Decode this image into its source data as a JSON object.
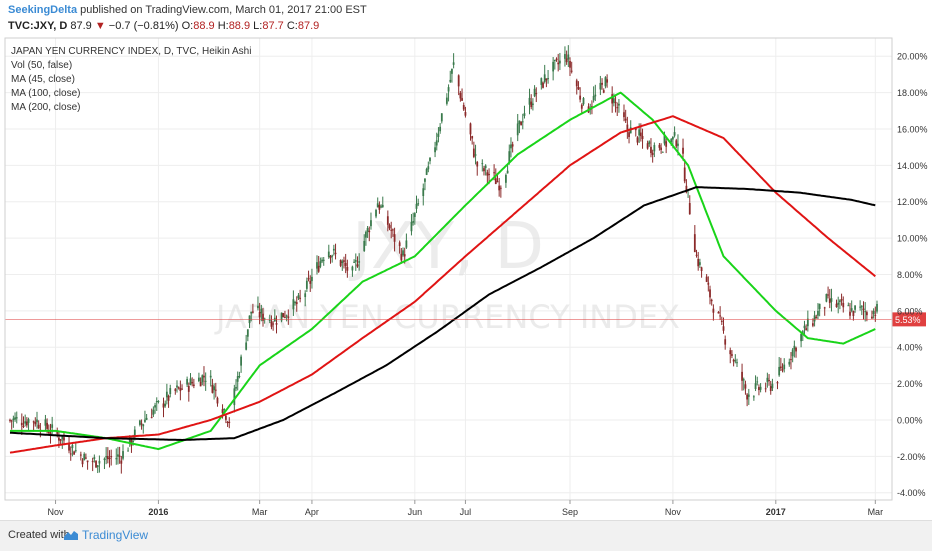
{
  "header": {
    "publisher": "SeekingDelta",
    "publisher_text": "published on TradingView.com, March 01, 2017 21:00 EST"
  },
  "quote": {
    "symbol": "TVC:JXY, D",
    "last": "87.9",
    "change": "−0.7 (−0.81%)",
    "o_label": "O:",
    "o_val": "88.9",
    "h_label": "H:",
    "h_val": "88.9",
    "l_label": "L:",
    "l_val": "87.7",
    "c_label": "C:",
    "c_val": "87.9"
  },
  "footer": {
    "created": "Created with",
    "brand": "TradingView"
  },
  "colors": {
    "up": "#3a7a4c",
    "down": "#8b2a2a",
    "ma45": "#19d419",
    "ma100": "#e01414",
    "ma200": "#000000",
    "last_price": "#e04040",
    "grid": "#eeeeee"
  },
  "chart_data": {
    "type": "line",
    "title": "JAPAN YEN CURRENCY INDEX, D, TVC, Heikin Ashi",
    "legend": [
      "Vol (50, false)",
      "MA (45, close)",
      "MA (100, close)",
      "MA (200, close)"
    ],
    "watermark_symbol": "JXY, D",
    "watermark_name": "JAPAN YEN CURRENCY INDEX",
    "y_scale": "percent",
    "ylim": [
      -4.4,
      21.0
    ],
    "y_ticks": [
      "20.00%",
      "18.00%",
      "16.00%",
      "14.00%",
      "12.00%",
      "10.00%",
      "8.00%",
      "6.00%",
      "4.00%",
      "2.00%",
      "0.00%",
      "-2.00%",
      "-4.00%"
    ],
    "y_tick_values": [
      20,
      18,
      16,
      14,
      12,
      10,
      8,
      6,
      4,
      2,
      0,
      -2,
      -4
    ],
    "x_ticks": [
      "Nov",
      "2016",
      "Mar",
      "Apr",
      "Jun",
      "Jul",
      "Sep",
      "Nov",
      "2017",
      "Mar"
    ],
    "x_tick_dates": [
      "2015-11-01",
      "2016-01-01",
      "2016-03-01",
      "2016-04-01",
      "2016-06-01",
      "2016-07-01",
      "2016-09-01",
      "2016-11-01",
      "2017-01-01",
      "2017-03-01"
    ],
    "x_bold_ticks": [
      "2016",
      "2017"
    ],
    "x_range": [
      "2015-10-05",
      "2017-03-02"
    ],
    "last_value": 5.53,
    "last_label": "5.53%",
    "price_anchors": [
      [
        "2015-10-05",
        0.0
      ],
      [
        "2015-10-20",
        0.0
      ],
      [
        "2015-11-05",
        -1.0
      ],
      [
        "2015-11-20",
        -2.3
      ],
      [
        "2015-12-10",
        -2.0
      ],
      [
        "2015-12-25",
        0.2
      ],
      [
        "2016-01-10",
        1.5
      ],
      [
        "2016-01-30",
        2.5
      ],
      [
        "2016-02-12",
        0.0
      ],
      [
        "2016-02-25",
        6.0
      ],
      [
        "2016-03-10",
        5.5
      ],
      [
        "2016-03-25",
        6.5
      ],
      [
        "2016-04-10",
        9.5
      ],
      [
        "2016-04-25",
        8.0
      ],
      [
        "2016-05-10",
        12.0
      ],
      [
        "2016-05-25",
        9.0
      ],
      [
        "2016-06-10",
        14.0
      ],
      [
        "2016-06-24",
        19.5
      ],
      [
        "2016-07-08",
        14.0
      ],
      [
        "2016-07-22",
        13.0
      ],
      [
        "2016-08-05",
        17.0
      ],
      [
        "2016-08-19",
        19.0
      ],
      [
        "2016-08-30",
        20.0
      ],
      [
        "2016-09-10",
        17.0
      ],
      [
        "2016-09-22",
        18.5
      ],
      [
        "2016-10-05",
        16.0
      ],
      [
        "2016-10-20",
        15.0
      ],
      [
        "2016-11-05",
        15.5
      ],
      [
        "2016-11-15",
        9.0
      ],
      [
        "2016-11-30",
        5.0
      ],
      [
        "2016-12-15",
        1.5
      ],
      [
        "2016-12-31",
        2.0
      ],
      [
        "2017-01-15",
        4.5
      ],
      [
        "2017-01-31",
        6.5
      ],
      [
        "2017-02-15",
        6.0
      ],
      [
        "2017-03-01",
        6.0
      ]
    ],
    "series": [
      {
        "name": "MA (45, close)",
        "color": "#19d419",
        "points": [
          [
            "2015-10-05",
            -0.6
          ],
          [
            "2015-11-01",
            -0.6
          ],
          [
            "2015-12-01",
            -1.0
          ],
          [
            "2016-01-01",
            -1.6
          ],
          [
            "2016-02-01",
            -0.6
          ],
          [
            "2016-03-01",
            3.0
          ],
          [
            "2016-04-01",
            5.0
          ],
          [
            "2016-05-01",
            7.6
          ],
          [
            "2016-06-01",
            9.0
          ],
          [
            "2016-07-01",
            11.8
          ],
          [
            "2016-08-01",
            14.6
          ],
          [
            "2016-09-01",
            16.5
          ],
          [
            "2016-10-01",
            18.0
          ],
          [
            "2016-10-20",
            16.5
          ],
          [
            "2016-11-10",
            14.0
          ],
          [
            "2016-12-01",
            9.0
          ],
          [
            "2017-01-01",
            6.0
          ],
          [
            "2017-01-20",
            4.5
          ],
          [
            "2017-02-10",
            4.2
          ],
          [
            "2017-03-01",
            5.0
          ]
        ]
      },
      {
        "name": "MA (100, close)",
        "color": "#e01414",
        "points": [
          [
            "2015-10-05",
            -1.8
          ],
          [
            "2015-11-01",
            -1.4
          ],
          [
            "2015-12-01",
            -1.0
          ],
          [
            "2016-01-01",
            -0.8
          ],
          [
            "2016-02-01",
            0.0
          ],
          [
            "2016-03-01",
            1.0
          ],
          [
            "2016-04-01",
            2.5
          ],
          [
            "2016-05-01",
            4.5
          ],
          [
            "2016-06-01",
            6.5
          ],
          [
            "2016-07-01",
            9.0
          ],
          [
            "2016-08-01",
            11.5
          ],
          [
            "2016-09-01",
            14.0
          ],
          [
            "2016-10-01",
            15.8
          ],
          [
            "2016-11-01",
            16.7
          ],
          [
            "2016-12-01",
            15.5
          ],
          [
            "2017-01-01",
            12.5
          ],
          [
            "2017-02-01",
            10.0
          ],
          [
            "2017-03-01",
            7.9
          ]
        ]
      },
      {
        "name": "MA (200, close)",
        "color": "#000000",
        "points": [
          [
            "2015-10-05",
            -0.7
          ],
          [
            "2015-12-01",
            -1.0
          ],
          [
            "2016-01-15",
            -1.1
          ],
          [
            "2016-02-15",
            -1.0
          ],
          [
            "2016-03-15",
            0.0
          ],
          [
            "2016-04-15",
            1.5
          ],
          [
            "2016-05-15",
            3.0
          ],
          [
            "2016-06-15",
            4.9
          ],
          [
            "2016-07-15",
            6.9
          ],
          [
            "2016-08-15",
            8.4
          ],
          [
            "2016-09-15",
            10.0
          ],
          [
            "2016-10-15",
            11.8
          ],
          [
            "2016-11-15",
            12.8
          ],
          [
            "2016-12-15",
            12.7
          ],
          [
            "2017-01-15",
            12.5
          ],
          [
            "2017-02-15",
            12.1
          ],
          [
            "2017-03-01",
            11.8
          ]
        ]
      }
    ]
  }
}
